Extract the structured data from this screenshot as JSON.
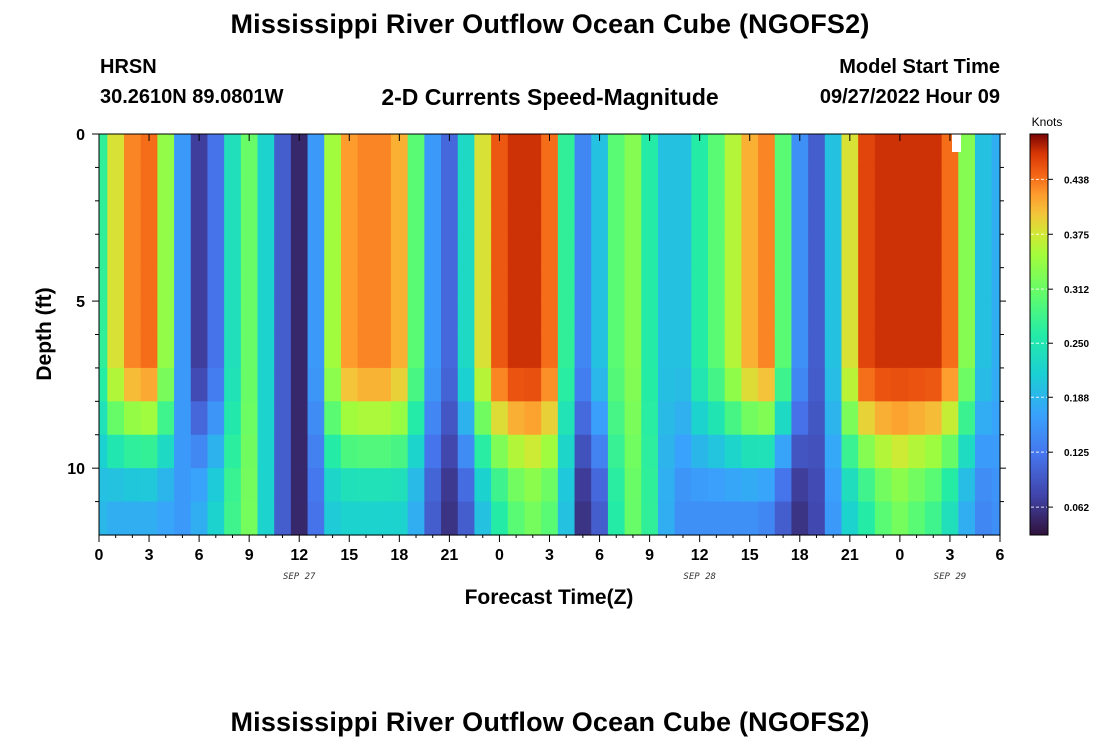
{
  "titles": {
    "main": "Mississippi River Outflow Ocean Cube (NGOFS2)",
    "repeat": "Mississippi River Outflow Ocean Cube (NGOFS2)"
  },
  "header": {
    "station": "HRSN",
    "coordinates": "30.2610N  89.0801W",
    "subtitle": "2-D Currents Speed-Magnitude",
    "model_start_label": "Model Start Time",
    "model_start_value": "09/27/2022 Hour 09"
  },
  "chart_data": {
    "type": "heatmap",
    "title": "2-D Currents Speed-Magnitude",
    "xlabel": "Forecast Time(Z)",
    "ylabel": "Depth (ft)",
    "x_tick_labels": [
      "0",
      "3",
      "6",
      "9",
      "12",
      "15",
      "18",
      "21",
      "0",
      "3",
      "6",
      "9",
      "12",
      "15",
      "18",
      "21",
      "0",
      "3",
      "6"
    ],
    "date_labels": [
      "SEP 27",
      "SEP 28",
      "SEP 29"
    ],
    "x_range_hours_from_sep27_00z": [
      0,
      54
    ],
    "y_tick_labels": [
      "0",
      "5",
      "10"
    ],
    "ylim_ft": [
      0,
      12
    ],
    "y_reversed": true,
    "colorbar": {
      "label": "Knots",
      "ticks": [
        "0.438",
        "0.375",
        "0.312",
        "0.250",
        "0.188",
        "0.125",
        "0.062"
      ],
      "range": [
        0.03,
        0.49
      ]
    },
    "depth_levels_ft": [
      0.5,
      1.5,
      2.5,
      3.5,
      4.5,
      5.5,
      6.5,
      7.5,
      8.5,
      9.5,
      10.5,
      11.5
    ],
    "surface_speed_knots": {
      "hours": [
        0,
        1,
        2,
        3,
        4,
        5,
        6,
        7,
        8,
        9,
        10,
        11,
        12,
        13,
        14,
        15,
        16,
        17,
        18,
        19,
        20,
        21,
        22,
        23,
        24,
        25,
        26,
        27,
        28,
        29,
        30,
        31,
        32,
        33,
        34,
        35,
        36,
        37,
        38,
        39,
        40,
        41,
        42,
        43,
        44,
        45,
        46,
        47,
        48,
        49,
        50,
        51,
        52,
        53,
        54
      ],
      "values": [
        0.27,
        0.38,
        0.43,
        0.44,
        0.34,
        0.16,
        0.07,
        0.12,
        0.24,
        0.31,
        0.22,
        0.1,
        0.05,
        0.16,
        0.35,
        0.42,
        0.43,
        0.43,
        0.41,
        0.3,
        0.16,
        0.11,
        0.23,
        0.38,
        0.45,
        0.47,
        0.47,
        0.44,
        0.27,
        0.14,
        0.2,
        0.3,
        0.33,
        0.26,
        0.2,
        0.2,
        0.26,
        0.3,
        0.36,
        0.41,
        0.43,
        0.3,
        0.15,
        0.1,
        0.2,
        0.38,
        0.46,
        0.47,
        0.47,
        0.47,
        0.47,
        0.44,
        0.33,
        0.2,
        0.18
      ]
    },
    "bottom_speed_knots": {
      "hours": [
        0,
        1,
        2,
        3,
        4,
        5,
        6,
        7,
        8,
        9,
        10,
        11,
        12,
        13,
        14,
        15,
        16,
        17,
        18,
        19,
        20,
        21,
        22,
        23,
        24,
        25,
        26,
        27,
        28,
        29,
        30,
        31,
        32,
        33,
        34,
        35,
        36,
        37,
        38,
        39,
        40,
        41,
        42,
        43,
        44,
        45,
        46,
        47,
        48,
        49,
        50,
        51,
        52,
        53,
        54
      ],
      "values": [
        0.19,
        0.18,
        0.18,
        0.18,
        0.17,
        0.16,
        0.18,
        0.22,
        0.28,
        0.32,
        0.22,
        0.1,
        0.05,
        0.12,
        0.21,
        0.22,
        0.22,
        0.22,
        0.22,
        0.18,
        0.1,
        0.06,
        0.1,
        0.2,
        0.26,
        0.3,
        0.32,
        0.3,
        0.2,
        0.06,
        0.1,
        0.26,
        0.31,
        0.27,
        0.18,
        0.15,
        0.15,
        0.15,
        0.15,
        0.15,
        0.14,
        0.1,
        0.06,
        0.08,
        0.16,
        0.22,
        0.26,
        0.3,
        0.32,
        0.3,
        0.28,
        0.24,
        0.18,
        0.14,
        0.15
      ]
    }
  }
}
